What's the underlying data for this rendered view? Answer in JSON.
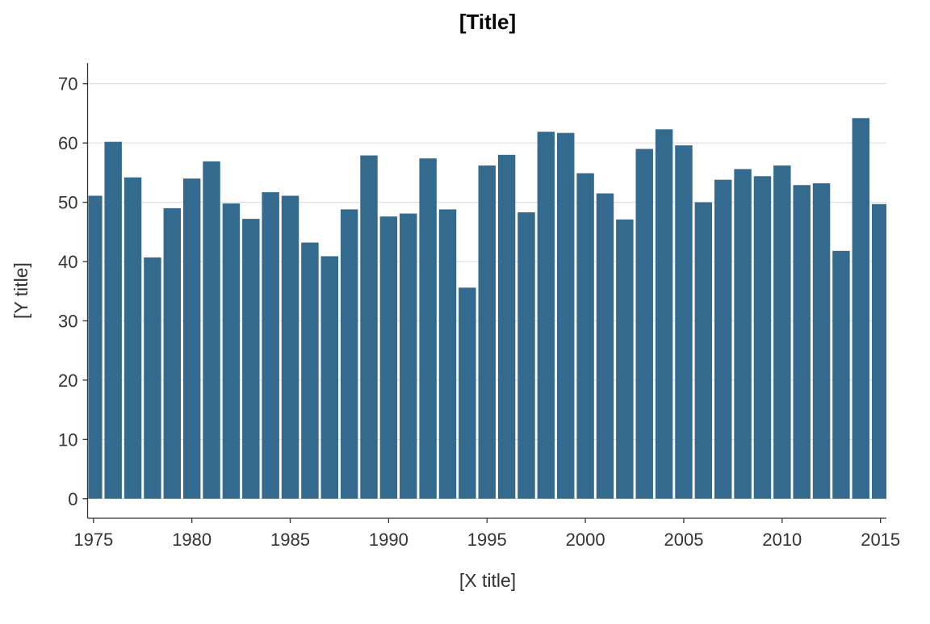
{
  "chart_data": {
    "type": "bar",
    "title": "[Title]",
    "xlabel": "[X title]",
    "ylabel": "[Y title]",
    "x": [
      1975,
      1976,
      1977,
      1978,
      1979,
      1980,
      1981,
      1982,
      1983,
      1984,
      1985,
      1986,
      1987,
      1988,
      1989,
      1990,
      1991,
      1992,
      1993,
      1994,
      1995,
      1996,
      1997,
      1998,
      1999,
      2000,
      2001,
      2002,
      2003,
      2004,
      2005,
      2006,
      2007,
      2008,
      2009,
      2010,
      2011,
      2012,
      2013,
      2014,
      2015
    ],
    "values": [
      51.1,
      60.2,
      54.2,
      40.7,
      49.0,
      54.0,
      56.9,
      49.8,
      47.2,
      51.7,
      51.1,
      43.2,
      40.9,
      48.8,
      57.9,
      47.6,
      48.1,
      57.4,
      48.8,
      35.6,
      56.2,
      58.0,
      48.3,
      61.9,
      61.7,
      54.9,
      51.5,
      47.1,
      59.0,
      62.3,
      59.6,
      50.0,
      53.8,
      55.6,
      54.4,
      56.2,
      52.9,
      53.2,
      41.8,
      64.2,
      49.7
    ],
    "xticks": [
      1975,
      1980,
      1985,
      1990,
      1995,
      2000,
      2005,
      2010,
      2015
    ],
    "yticks": [
      0,
      10,
      20,
      30,
      40,
      50,
      60,
      70
    ],
    "xlim": [
      1974.7,
      2015.3
    ],
    "ylim": [
      -3.3,
      73.5
    ],
    "bar_color": "#336a8e",
    "grid": "horizontal",
    "legend": "none"
  }
}
